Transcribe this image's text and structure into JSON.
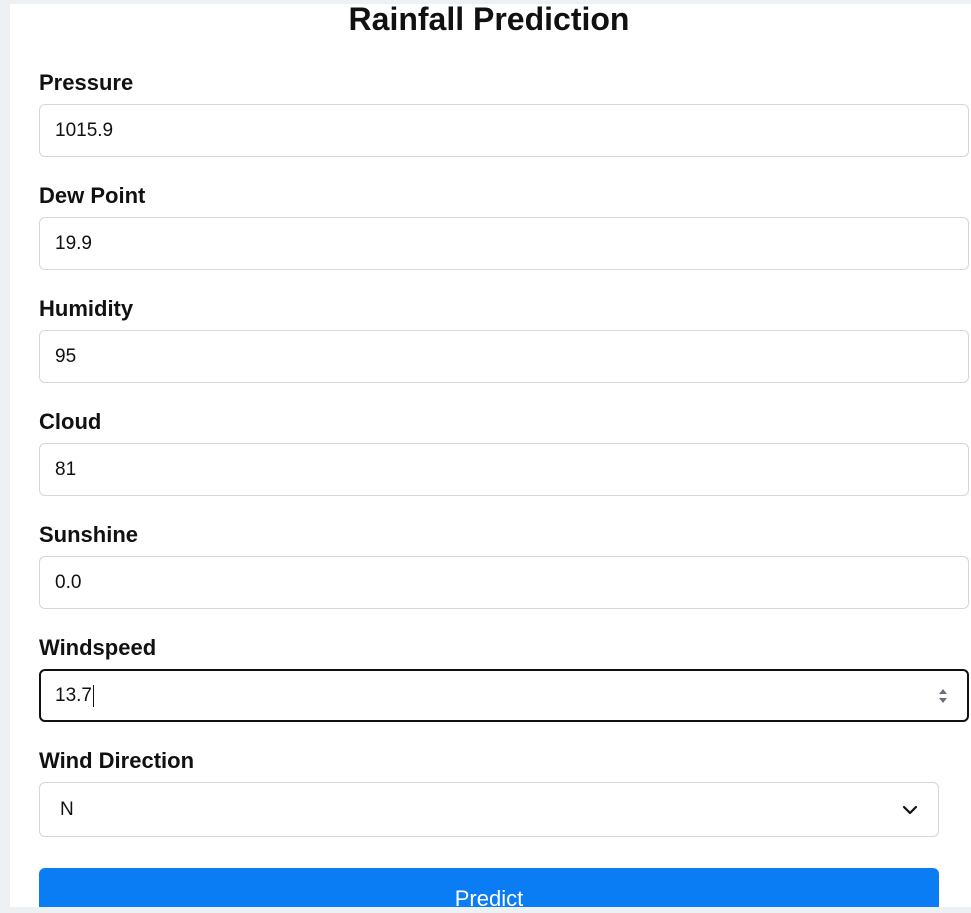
{
  "form": {
    "title": "Rainfall Prediction",
    "fields": [
      {
        "label": "Pressure",
        "value": "1015.9"
      },
      {
        "label": "Dew Point",
        "value": "19.9"
      },
      {
        "label": "Humidity",
        "value": "95"
      },
      {
        "label": "Cloud",
        "value": "81"
      },
      {
        "label": "Sunshine",
        "value": "0.0"
      },
      {
        "label": "Windspeed",
        "value": "13.7"
      }
    ],
    "wind_direction": {
      "label": "Wind Direction",
      "selected": "N"
    },
    "submit_label": "Predict"
  },
  "colors": {
    "accent": "#0a7cf4",
    "focus_border": "#111111"
  }
}
